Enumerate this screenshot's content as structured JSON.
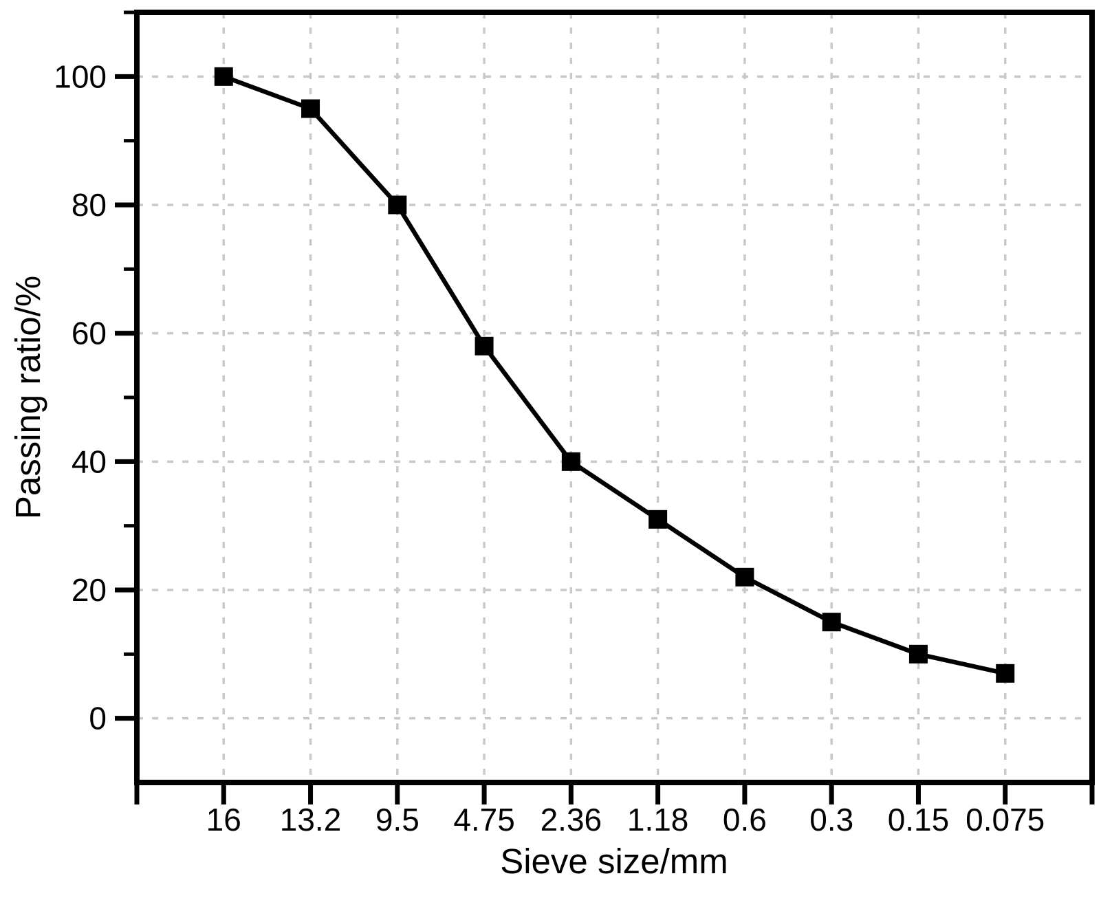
{
  "chart_data": {
    "type": "line",
    "title": "",
    "xlabel": "Sieve size/mm",
    "ylabel": "Passing ratio/%",
    "categories": [
      "16",
      "13.2",
      "9.5",
      "4.75",
      "2.36",
      "1.18",
      "0.6",
      "0.3",
      "0.15",
      "0.075"
    ],
    "series": [
      {
        "name": "Passing ratio",
        "values": [
          100,
          95,
          80,
          58,
          40,
          31,
          22,
          15,
          10,
          7
        ]
      }
    ],
    "ylim": [
      -10,
      110
    ],
    "yticks": [
      0,
      20,
      40,
      60,
      80,
      100
    ],
    "y_minor_ticks": [
      10,
      30,
      50,
      70,
      90,
      110
    ],
    "grid": true,
    "legend_position": "none",
    "marker": "square",
    "marker_size": 27,
    "line_color": "#000000",
    "axis_color": "#000000",
    "grid_color": "#c9c9c9",
    "background": "#ffffff"
  }
}
